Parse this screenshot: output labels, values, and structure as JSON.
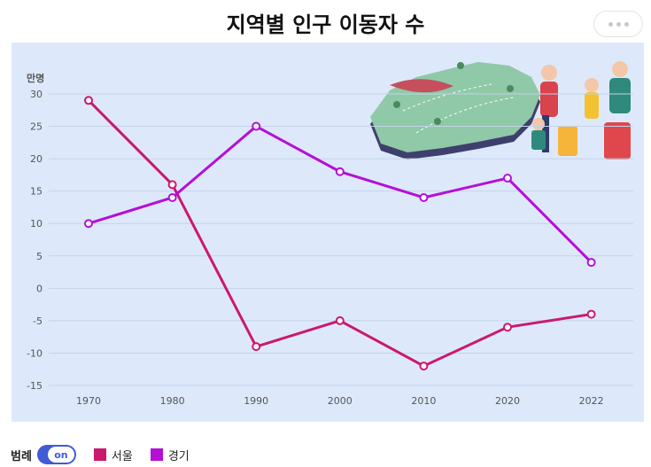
{
  "title": "지역별 인구 이동자 수",
  "legend": {
    "label": "범례",
    "toggle_label": "on"
  },
  "chart_data": {
    "type": "line",
    "title": "지역별 인구 이동자 수",
    "ylabel": "만명",
    "xlabel": "",
    "x": [
      "1970",
      "1980",
      "1990",
      "2000",
      "2010",
      "2020",
      "2022"
    ],
    "ylim": [
      -15,
      30
    ],
    "yticks": [
      30,
      25,
      20,
      15,
      10,
      5,
      0,
      -5,
      -10,
      -15
    ],
    "grid": true,
    "legend_position": "bottom-left",
    "series": [
      {
        "name": "서울",
        "color": "#cc1770",
        "values": [
          29,
          16,
          -9,
          -5,
          -12,
          -6,
          -4
        ]
      },
      {
        "name": "경기",
        "color": "#b50fd6",
        "values": [
          10,
          14,
          25,
          18,
          14,
          17,
          4
        ]
      }
    ]
  },
  "colors": {
    "plot_background": "#dde9fb",
    "toggle": "#3f5bd6"
  }
}
